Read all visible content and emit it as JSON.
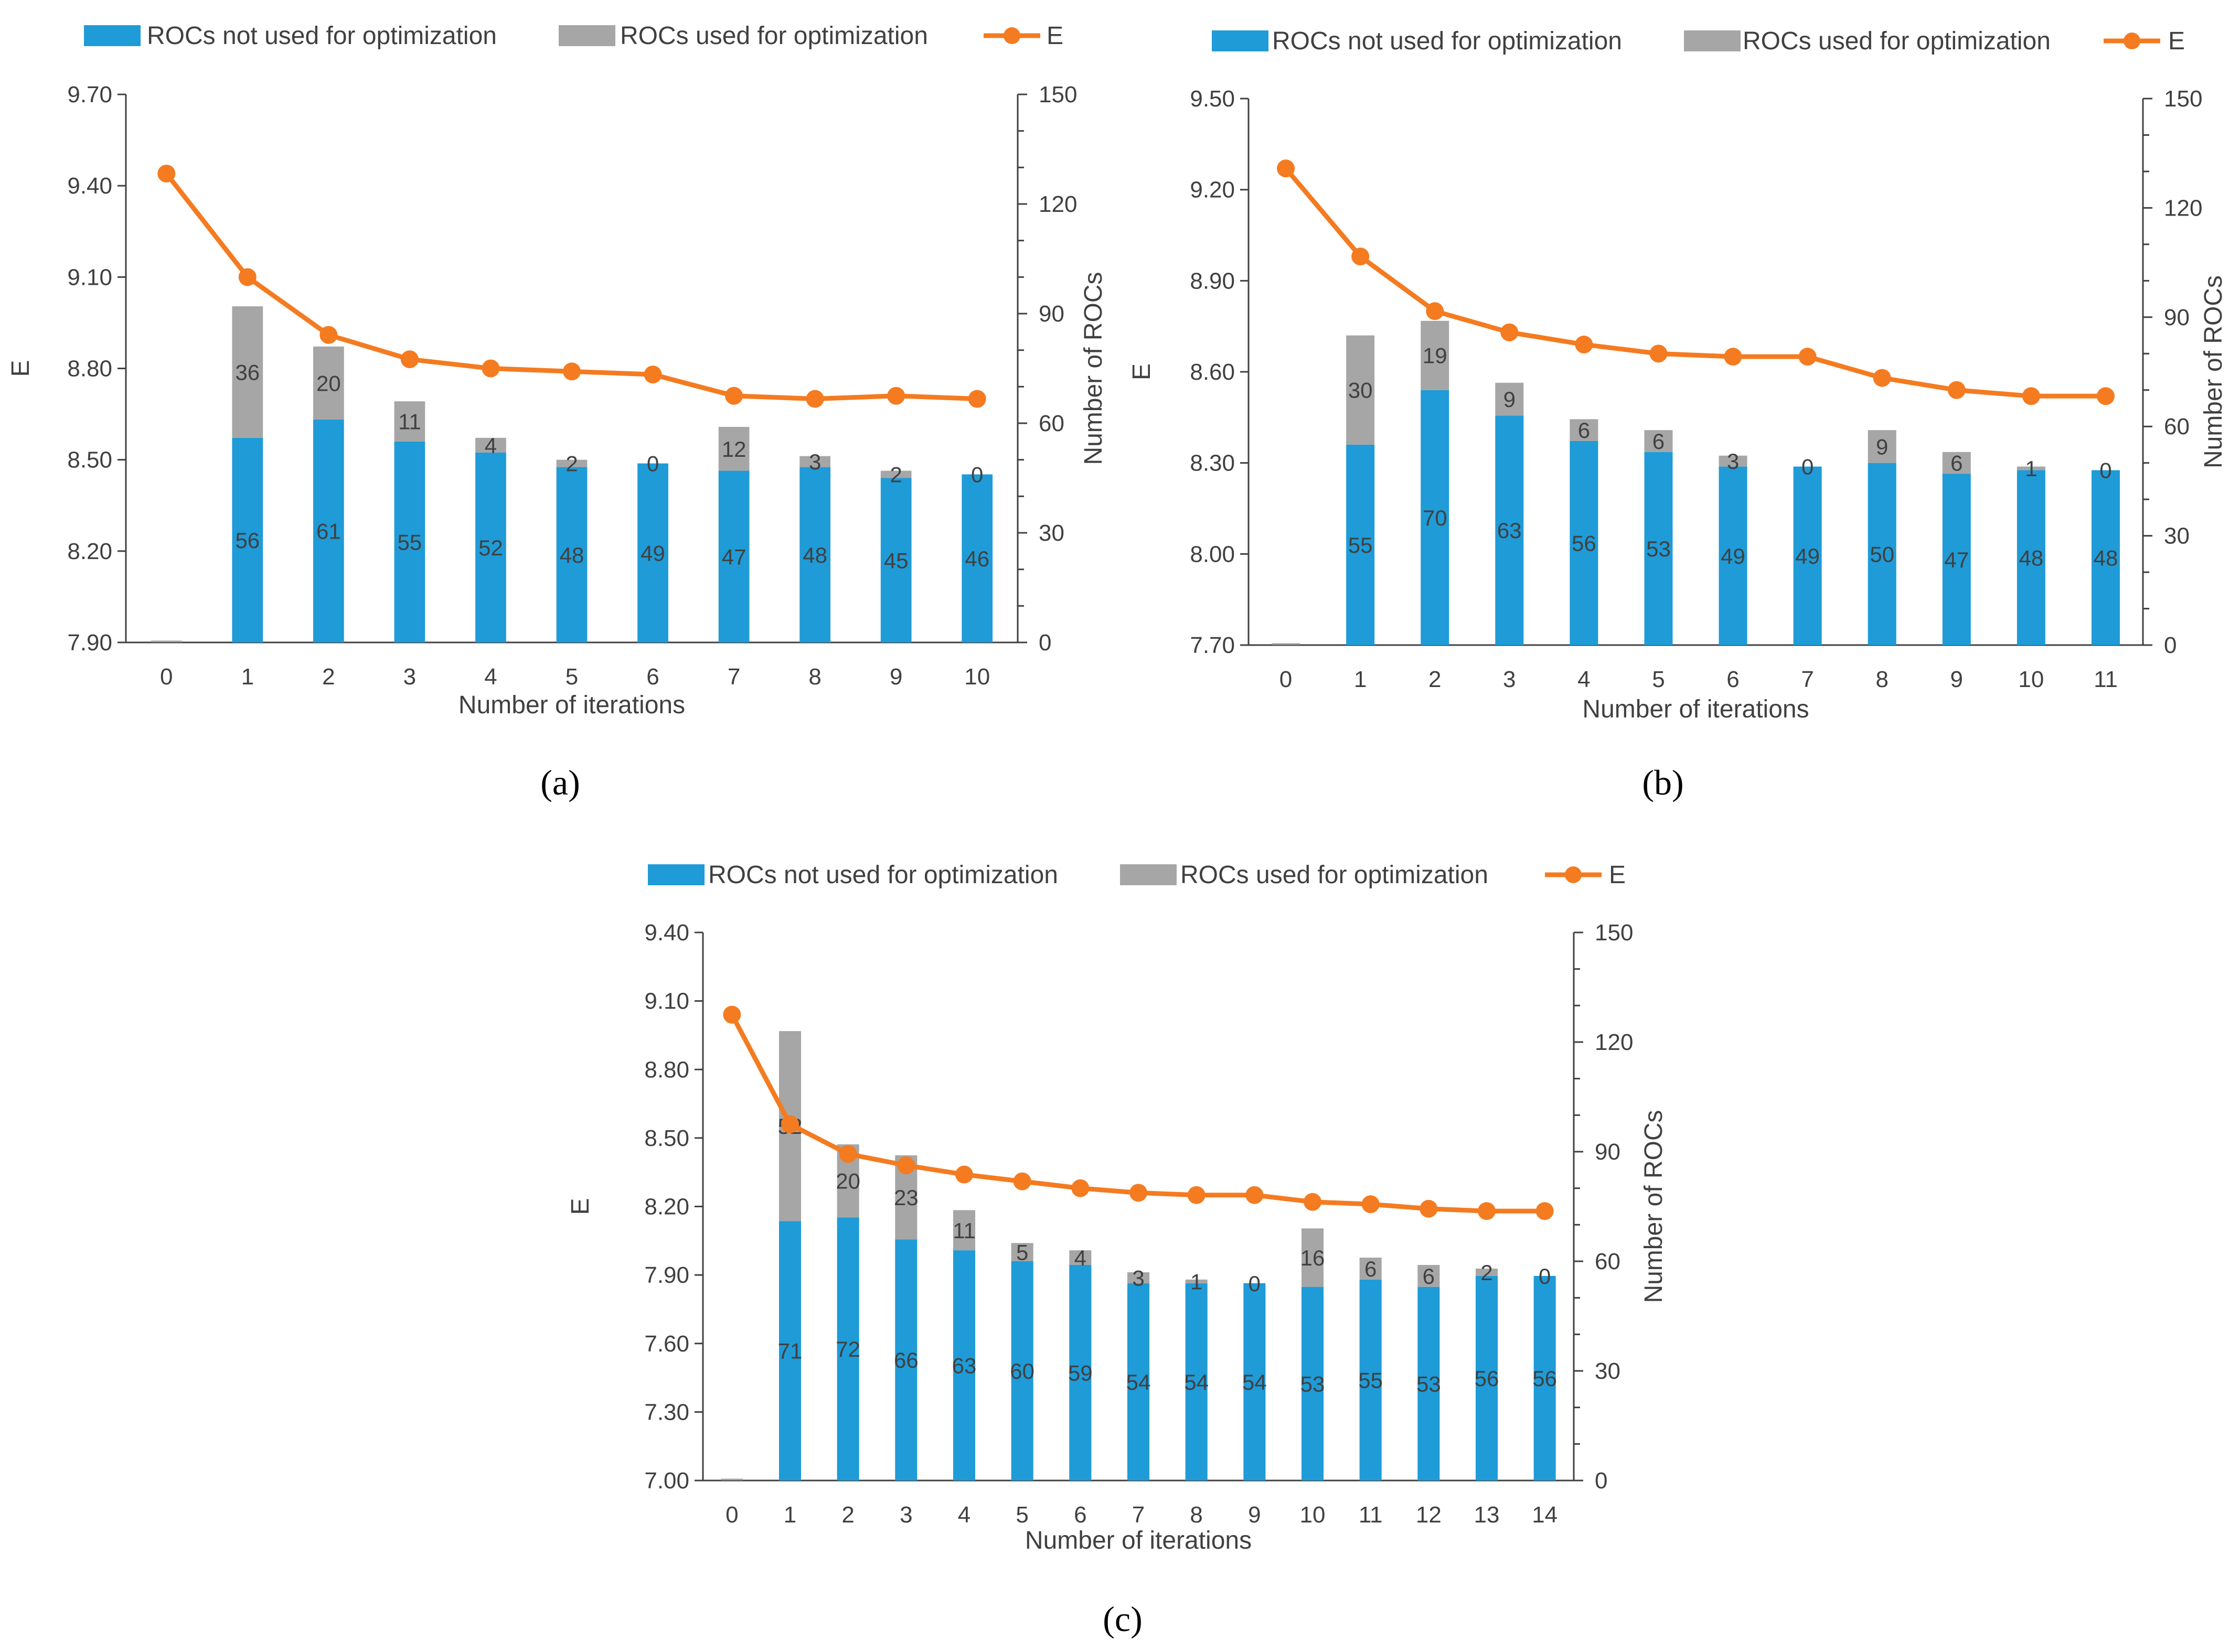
{
  "legend": {
    "not_used": "ROCs not used for optimization",
    "used": "ROCs used for optimization",
    "e": "E"
  },
  "colors": {
    "not_used": "#1f9bd7",
    "used": "#a6a6a6",
    "e": "#f47b20",
    "axis": "#404040",
    "text": "#404040"
  },
  "chart_data": [
    {
      "id": "a",
      "type": "bar",
      "caption": "(a)",
      "xlabel": "Number of iterations",
      "ylabel_left": "E",
      "ylabel_right": "Number of ROCs",
      "categories": [
        "0",
        "1",
        "2",
        "3",
        "4",
        "5",
        "6",
        "7",
        "8",
        "9",
        "10"
      ],
      "left_ylim": [
        7.9,
        9.7
      ],
      "left_ticks": [
        "7.90",
        "8.20",
        "8.50",
        "8.80",
        "9.10",
        "9.40",
        "9.70"
      ],
      "right_ylim": [
        0,
        150
      ],
      "right_ticks": [
        "0",
        "30",
        "60",
        "90",
        "120",
        "150"
      ],
      "series": [
        {
          "name": "ROCs not used for optimization",
          "kind": "stacked-bar",
          "values": [
            0,
            56,
            61,
            55,
            52,
            48,
            49,
            47,
            48,
            45,
            46
          ]
        },
        {
          "name": "ROCs used for optimization",
          "kind": "stacked-bar",
          "values": [
            0,
            36,
            20,
            11,
            4,
            2,
            0,
            12,
            3,
            2,
            0
          ]
        },
        {
          "name": "E",
          "kind": "line",
          "axis": "left",
          "values": [
            9.44,
            9.1,
            8.91,
            8.83,
            8.8,
            8.79,
            8.78,
            8.71,
            8.7,
            8.71,
            8.7
          ]
        }
      ]
    },
    {
      "id": "b",
      "type": "bar",
      "caption": "(b)",
      "xlabel": "Number of iterations",
      "ylabel_left": "E",
      "ylabel_right": "Number of ROCs",
      "categories": [
        "0",
        "1",
        "2",
        "3",
        "4",
        "5",
        "6",
        "7",
        "8",
        "9",
        "10",
        "11"
      ],
      "left_ylim": [
        7.7,
        9.5
      ],
      "left_ticks": [
        "7.70",
        "8.00",
        "8.30",
        "8.60",
        "8.90",
        "9.20",
        "9.50"
      ],
      "right_ylim": [
        0,
        150
      ],
      "right_ticks": [
        "0",
        "30",
        "60",
        "90",
        "120",
        "150"
      ],
      "series": [
        {
          "name": "ROCs not used for optimization",
          "kind": "stacked-bar",
          "values": [
            0,
            55,
            70,
            63,
            56,
            53,
            49,
            49,
            50,
            47,
            48,
            48
          ]
        },
        {
          "name": "ROCs used for optimization",
          "kind": "stacked-bar",
          "values": [
            0,
            30,
            19,
            9,
            6,
            6,
            3,
            0,
            9,
            6,
            1,
            0
          ]
        },
        {
          "name": "E",
          "kind": "line",
          "axis": "left",
          "values": [
            9.27,
            8.98,
            8.8,
            8.73,
            8.69,
            8.66,
            8.65,
            8.65,
            8.58,
            8.54,
            8.52,
            8.52
          ]
        }
      ]
    },
    {
      "id": "c",
      "type": "bar",
      "caption": "(c)",
      "xlabel": "Number of iterations",
      "ylabel_left": "E",
      "ylabel_right": "Number of ROCs",
      "categories": [
        "0",
        "1",
        "2",
        "3",
        "4",
        "5",
        "6",
        "7",
        "8",
        "9",
        "10",
        "11",
        "12",
        "13",
        "14"
      ],
      "left_ylim": [
        7.0,
        9.4
      ],
      "left_ticks": [
        "7.00",
        "7.30",
        "7.60",
        "7.90",
        "8.20",
        "8.50",
        "8.80",
        "9.10",
        "9.40"
      ],
      "right_ylim": [
        0,
        150
      ],
      "right_ticks": [
        "0",
        "30",
        "60",
        "90",
        "120",
        "150"
      ],
      "series": [
        {
          "name": "ROCs not used for optimization",
          "kind": "stacked-bar",
          "values": [
            0,
            71,
            72,
            66,
            63,
            60,
            59,
            54,
            54,
            54,
            53,
            55,
            53,
            56,
            56
          ]
        },
        {
          "name": "ROCs used for optimization",
          "kind": "stacked-bar",
          "values": [
            0,
            52,
            20,
            23,
            11,
            5,
            4,
            3,
            1,
            0,
            16,
            6,
            6,
            2,
            0
          ]
        },
        {
          "name": "E",
          "kind": "line",
          "axis": "left",
          "values": [
            9.04,
            8.56,
            8.43,
            8.38,
            8.34,
            8.31,
            8.28,
            8.26,
            8.25,
            8.25,
            8.22,
            8.21,
            8.19,
            8.18,
            8.18
          ]
        }
      ]
    }
  ]
}
